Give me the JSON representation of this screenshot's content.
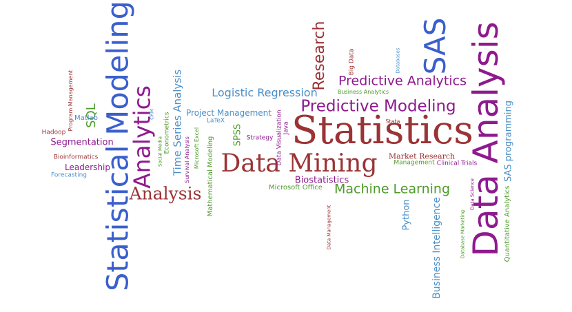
{
  "colors": {
    "blue": "#3a5fcd",
    "lightblue": "#4a8fc8",
    "maroon": "#9b3335",
    "purple": "#8e1a8e",
    "green": "#4f9a2a"
  },
  "words": {
    "statistical_modeling": "Statistical Modeling",
    "data_analysis": "Data Analysis",
    "statistics": "Statistics",
    "data_mining": "Data Mining",
    "analytics": "Analytics",
    "sas": "SAS",
    "research": "Research",
    "predictive_modeling": "Predictive Modeling",
    "predictive_analytics": "Predictive Analytics",
    "analysis": "Analysis",
    "machine_learning": "Machine Learning",
    "logistic_regression": "Logistic Regression",
    "sql": "SQL",
    "time_series_analysis": "Time Series Analysis",
    "sas_programming": "SAS programming",
    "business_intelligence": "Business Intelligence",
    "segmentation": "Segmentation",
    "biostatistics": "Biostatistics",
    "spss": "SPSS",
    "project_management": "Project Management",
    "leadership": "Leadership",
    "python": "Python",
    "market_research": "Market Research",
    "quantitative_analytics": "Quantitative Analytics",
    "mathematical_modeling": "Mathematical Modeling",
    "microsoft_office": "Microsoft Office",
    "matlab": "Matlab",
    "econometrics": "Econometrics",
    "data_visualization": "Data Visualization",
    "java": "Java",
    "latex": "LaTeX",
    "strategy": "Strategy",
    "bioinformatics": "Bioinformatics",
    "hadoop": "Hadoop",
    "forecasting": "Forecasting",
    "microsoft_excel": "Microsoft Excel",
    "big_data": "Big Data",
    "management": "Management",
    "clinical_trials": "Clinical Trials",
    "survival_analysis": "Survival Analysis",
    "business_analytics": "Business Analytics",
    "program_management": "Program Management",
    "databases": "Databases",
    "stata": "Stata",
    "social_media": "Social Media",
    "crm": "CRM",
    "data_management": "Data Management",
    "database_marketing": "Database Marketing",
    "data_science": "Data Science"
  }
}
